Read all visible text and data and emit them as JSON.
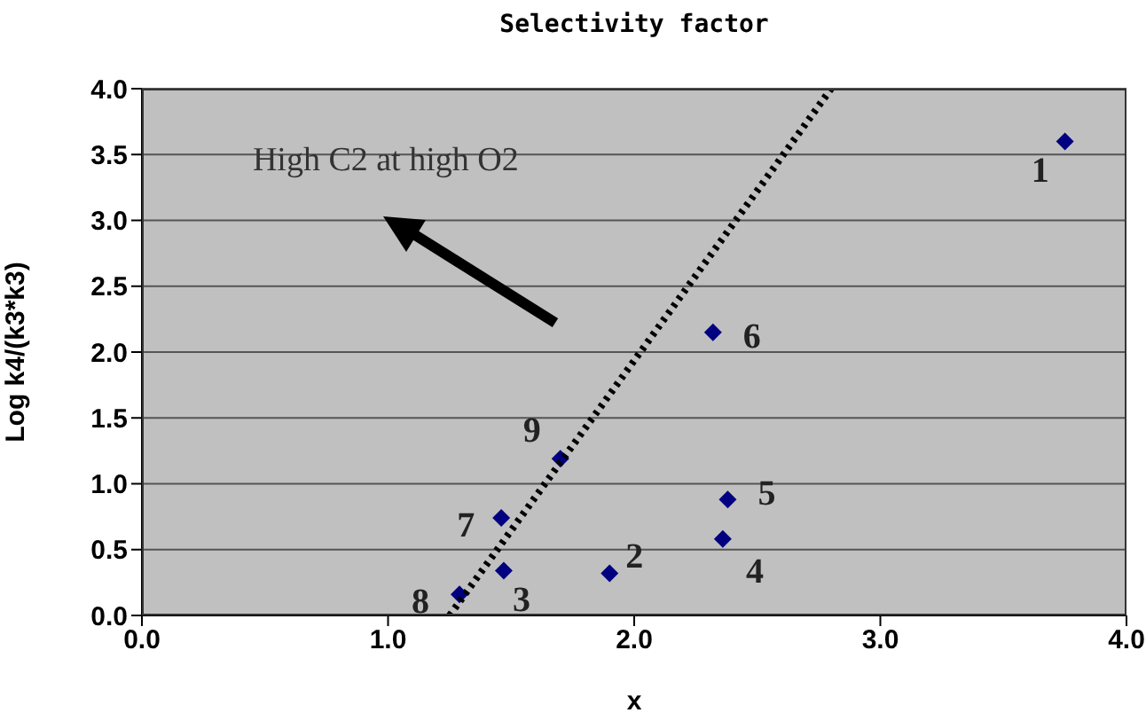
{
  "chart_data": {
    "type": "scatter",
    "title": "Selectivity factor",
    "xlabel": "x",
    "ylabel": "Log k4/(k3*k3)",
    "annotations": [
      "High C2 at high O2"
    ],
    "grid": "y",
    "marker": "diamond",
    "xlim": [
      0,
      4
    ],
    "xticks": [
      {
        "value": 0,
        "label": "0.0"
      },
      {
        "value": 1,
        "label": "1.0"
      },
      {
        "value": 2,
        "label": "2.0"
      },
      {
        "value": 3,
        "label": "3.0"
      },
      {
        "value": 4,
        "label": "4.0"
      }
    ],
    "ylim": [
      0,
      4
    ],
    "yticks": [
      {
        "value": 0,
        "label": "0.0"
      },
      {
        "value": 0.5,
        "label": "0.5"
      },
      {
        "value": 1,
        "label": "1.0"
      },
      {
        "value": 1.5,
        "label": "1.5"
      },
      {
        "value": 2,
        "label": "2.0"
      },
      {
        "value": 2.5,
        "label": "2.5"
      },
      {
        "value": 3,
        "label": "3.0"
      },
      {
        "value": 3.5,
        "label": "3.5"
      },
      {
        "value": 4,
        "label": "4.0"
      }
    ],
    "series": [
      {
        "name": "1",
        "color": "#000080",
        "x": [
          3.75
        ],
        "values": [
          3.6
        ]
      },
      {
        "name": "2",
        "color": "#000080",
        "x": [
          1.9
        ],
        "values": [
          0.32
        ]
      },
      {
        "name": "3",
        "color": "#000080",
        "x": [
          1.47
        ],
        "values": [
          0.34
        ]
      },
      {
        "name": "4",
        "color": "#000080",
        "x": [
          2.36
        ],
        "values": [
          0.58
        ]
      },
      {
        "name": "5",
        "color": "#000080",
        "x": [
          2.38
        ],
        "values": [
          0.88
        ]
      },
      {
        "name": "6",
        "color": "#000080",
        "x": [
          2.32
        ],
        "values": [
          2.15
        ]
      },
      {
        "name": "7",
        "color": "#000080",
        "x": [
          1.46
        ],
        "values": [
          0.74
        ]
      },
      {
        "name": "8",
        "color": "#000080",
        "x": [
          1.29
        ],
        "values": [
          0.16
        ]
      },
      {
        "name": "9",
        "color": "#000080",
        "x": [
          1.7
        ],
        "values": [
          1.19
        ]
      },
      {
        "type": "line",
        "color": "#000000",
        "line_style": "dotted",
        "marker": "none",
        "x": [
          1.25,
          2.8
        ],
        "values": [
          0,
          4
        ]
      }
    ]
  }
}
